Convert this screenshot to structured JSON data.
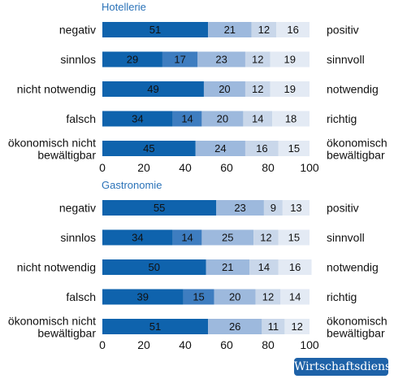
{
  "source_badge": "Wirtschaftsdienst",
  "colors": [
    "#0f63ad",
    "#3e7dc0",
    "#9db9dd",
    "#c9d7ea",
    "#e3eaf4"
  ],
  "chart_data": [
    {
      "type": "bar",
      "stacked": true,
      "orientation": "horizontal",
      "title": "Hotellerie",
      "xlim": [
        0,
        100
      ],
      "xticks": [
        0,
        20,
        40,
        60,
        80,
        100
      ],
      "rows": [
        {
          "left": [
            "negativ"
          ],
          "right": [
            "positiv"
          ],
          "values": [
            51,
            21,
            12,
            16
          ],
          "colors": [
            "#0f63ad",
            "#9db9dd",
            "#c9d7ea",
            "#e3eaf4"
          ]
        },
        {
          "left": [
            "sinnlos"
          ],
          "right": [
            "sinnvoll"
          ],
          "values": [
            29,
            17,
            23,
            12,
            19
          ],
          "colors": [
            "#0f63ad",
            "#3e7dc0",
            "#9db9dd",
            "#c9d7ea",
            "#e3eaf4"
          ]
        },
        {
          "left": [
            "nicht notwendig"
          ],
          "right": [
            "notwendig"
          ],
          "values": [
            49,
            20,
            12,
            19
          ],
          "colors": [
            "#0f63ad",
            "#9db9dd",
            "#c9d7ea",
            "#e3eaf4"
          ]
        },
        {
          "left": [
            "falsch"
          ],
          "right": [
            "richtig"
          ],
          "values": [
            34,
            14,
            20,
            14,
            18
          ],
          "colors": [
            "#0f63ad",
            "#3e7dc0",
            "#9db9dd",
            "#c9d7ea",
            "#e3eaf4"
          ]
        },
        {
          "left": [
            "ökonomisch nicht",
            "bewältigbar"
          ],
          "right": [
            "ökonomisch",
            "bewältigbar"
          ],
          "values": [
            45,
            24,
            16,
            15
          ],
          "colors": [
            "#0f63ad",
            "#9db9dd",
            "#c9d7ea",
            "#e3eaf4"
          ]
        }
      ]
    },
    {
      "type": "bar",
      "stacked": true,
      "orientation": "horizontal",
      "title": "Gastronomie",
      "xlim": [
        0,
        100
      ],
      "xticks": [
        0,
        20,
        40,
        60,
        80,
        100
      ],
      "rows": [
        {
          "left": [
            "negativ"
          ],
          "right": [
            "positiv"
          ],
          "values": [
            55,
            23,
            9,
            13
          ],
          "colors": [
            "#0f63ad",
            "#9db9dd",
            "#c9d7ea",
            "#e3eaf4"
          ]
        },
        {
          "left": [
            "sinnlos"
          ],
          "right": [
            "sinnvoll"
          ],
          "values": [
            34,
            14,
            25,
            12,
            15
          ],
          "colors": [
            "#0f63ad",
            "#3e7dc0",
            "#9db9dd",
            "#c9d7ea",
            "#e3eaf4"
          ]
        },
        {
          "left": [
            "nicht notwendig"
          ],
          "right": [
            "notwendig"
          ],
          "values": [
            50,
            21,
            14,
            16
          ],
          "colors": [
            "#0f63ad",
            "#9db9dd",
            "#c9d7ea",
            "#e3eaf4"
          ]
        },
        {
          "left": [
            "falsch"
          ],
          "right": [
            "richtig"
          ],
          "values": [
            39,
            15,
            20,
            12,
            14
          ],
          "colors": [
            "#0f63ad",
            "#3e7dc0",
            "#9db9dd",
            "#c9d7ea",
            "#e3eaf4"
          ]
        },
        {
          "left": [
            "ökonomisch nicht",
            "bewältigbar"
          ],
          "right": [
            "ökonomisch",
            "bewältigbar"
          ],
          "values": [
            51,
            26,
            11,
            12
          ],
          "colors": [
            "#0f63ad",
            "#9db9dd",
            "#c9d7ea",
            "#e3eaf4"
          ]
        }
      ]
    }
  ]
}
